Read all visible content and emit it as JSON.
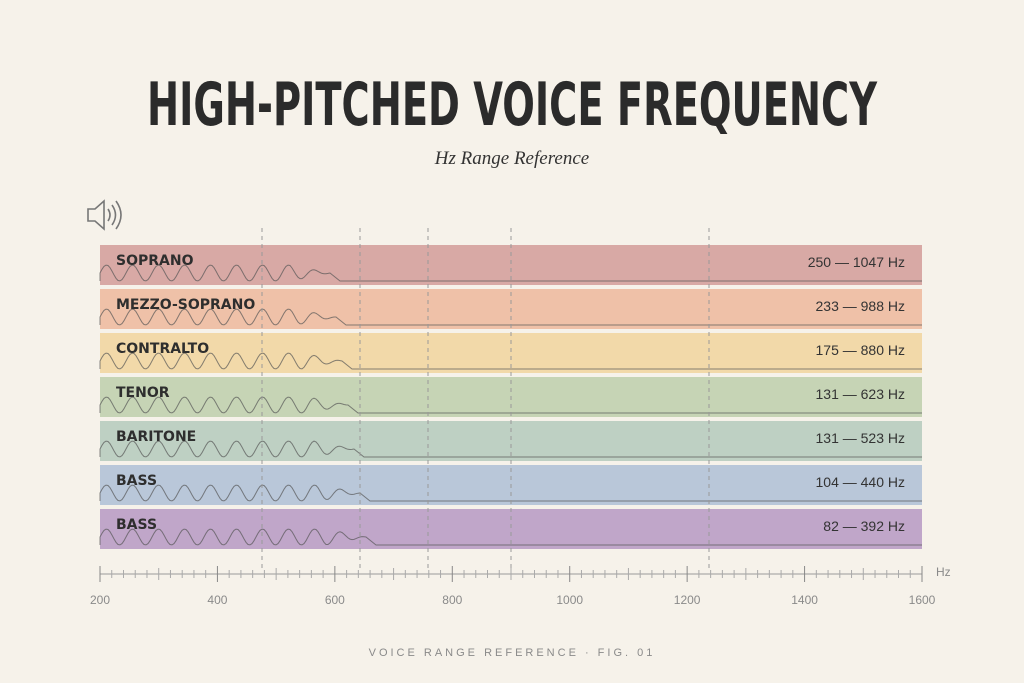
{
  "header": {
    "title": "HIGH-PITCHED VOICE FREQUENCY",
    "subtitle": "Hz Range Reference"
  },
  "rows": [
    {
      "name": "SOPRANO",
      "range": "250 — 1047 Hz",
      "color": "#d8a9a5"
    },
    {
      "name": "MEZZO-SOPRANO",
      "range": "233 — 988 Hz",
      "color": "#efc1a8"
    },
    {
      "name": "CONTRALTO",
      "range": "175 — 880 Hz",
      "color": "#f2d9a9"
    },
    {
      "name": "TENOR",
      "range": "131 — 623 Hz",
      "color": "#c6d4b5"
    },
    {
      "name": "BARITONE",
      "range": "131 — 523 Hz",
      "color": "#bed0c3"
    },
    {
      "name": "BASS",
      "range": "104 — 440 Hz",
      "color": "#b9c7d9"
    },
    {
      "name": "BASS",
      "range": "82 — 392 Hz",
      "color": "#c0a6c9"
    }
  ],
  "axis": {
    "unit": "Hz",
    "xlim": [
      200,
      1600
    ],
    "ticks": [
      200,
      400,
      600,
      800,
      1000,
      1200,
      1400,
      1600
    ]
  },
  "footer": "VOICE RANGE REFERENCE · FIG. 01"
}
